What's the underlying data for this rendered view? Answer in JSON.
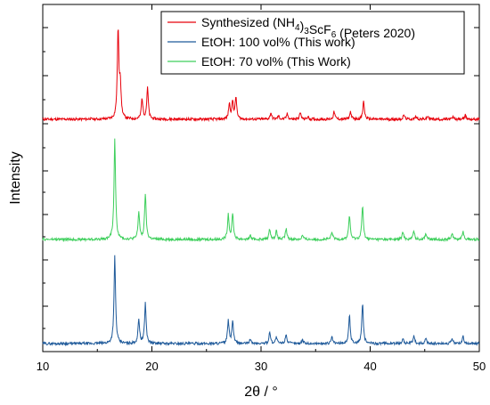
{
  "chart_data": {
    "type": "line",
    "title": "",
    "xlabel": "2θ / °",
    "ylabel": "Intensity",
    "xlim": [
      10,
      50
    ],
    "xticks": [
      10,
      20,
      30,
      40,
      50
    ],
    "y_tick_labels": false,
    "grid": false,
    "legend_position": "top-right",
    "series": [
      {
        "name": "Synthesized (NH4)3ScF6 (Peters 2020)",
        "legend": {
          "prefix": "Synthesized (NH",
          "sub1": "4",
          "mid": ")",
          "sub2": "3",
          "suffix": "ScF",
          "sub3": "6",
          "tail": " (Peters 2020)"
        },
        "color": "#e8000b",
        "baseline": 0.16,
        "peaks": [
          [
            14.3,
            0.006
          ],
          [
            16.9,
            0.82
          ],
          [
            17.1,
            0.32
          ],
          [
            19.1,
            0.19
          ],
          [
            19.6,
            0.29
          ],
          [
            27.1,
            0.14
          ],
          [
            27.4,
            0.16
          ],
          [
            27.7,
            0.2
          ],
          [
            30.9,
            0.06
          ],
          [
            31.6,
            0.03
          ],
          [
            32.4,
            0.05
          ],
          [
            33.6,
            0.06
          ],
          [
            34.3,
            0.02
          ],
          [
            36.7,
            0.07
          ],
          [
            38.2,
            0.07
          ],
          [
            39.4,
            0.17
          ],
          [
            43.1,
            0.04
          ],
          [
            44.2,
            0.03
          ],
          [
            45.3,
            0.03
          ],
          [
            47.6,
            0.02
          ],
          [
            48.7,
            0.04
          ]
        ]
      },
      {
        "name": "EtOH: 100 vol% (This work)",
        "legend": {
          "prefix": "EtOH: 100 vol% (This work)"
        },
        "color": "#1f5a9a",
        "baseline": 0.17,
        "peaks": [
          [
            16.6,
            0.84
          ],
          [
            18.8,
            0.23
          ],
          [
            19.4,
            0.39
          ],
          [
            27.0,
            0.22
          ],
          [
            27.4,
            0.22
          ],
          [
            29.0,
            0.04
          ],
          [
            30.8,
            0.11
          ],
          [
            31.4,
            0.06
          ],
          [
            32.3,
            0.09
          ],
          [
            33.8,
            0.04
          ],
          [
            36.5,
            0.06
          ],
          [
            38.1,
            0.27
          ],
          [
            39.3,
            0.38
          ],
          [
            43.0,
            0.05
          ],
          [
            44.0,
            0.07
          ],
          [
            45.1,
            0.05
          ],
          [
            47.5,
            0.05
          ],
          [
            48.5,
            0.07
          ]
        ]
      },
      {
        "name": "EtOH: 70 vol% (This Work)",
        "legend": {
          "prefix": "EtOH: 70 vol% (This Work)"
        },
        "color": "#3ecf5c",
        "baseline": 0.17,
        "peaks": [
          [
            16.6,
            0.97
          ],
          [
            18.8,
            0.26
          ],
          [
            19.4,
            0.44
          ],
          [
            27.0,
            0.24
          ],
          [
            27.4,
            0.25
          ],
          [
            29.0,
            0.04
          ],
          [
            30.8,
            0.1
          ],
          [
            31.4,
            0.08
          ],
          [
            32.3,
            0.1
          ],
          [
            33.8,
            0.04
          ],
          [
            36.5,
            0.07
          ],
          [
            38.1,
            0.23
          ],
          [
            39.3,
            0.32
          ],
          [
            43.0,
            0.07
          ],
          [
            44.0,
            0.08
          ],
          [
            45.1,
            0.06
          ],
          [
            47.5,
            0.06
          ],
          [
            48.5,
            0.08
          ]
        ]
      }
    ]
  }
}
